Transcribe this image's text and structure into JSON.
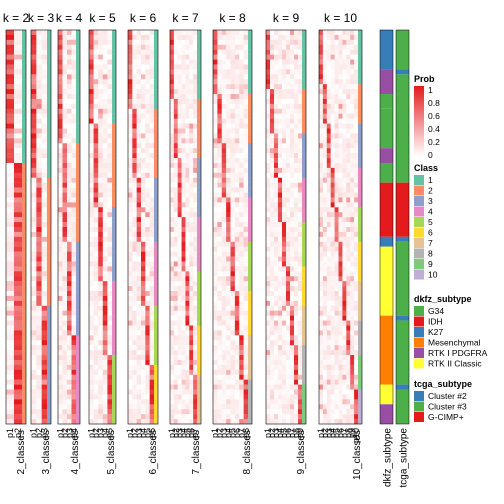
{
  "chart_data": {
    "type": "heatmap",
    "description_of_panels": "consensus membership probability heatmaps for k = 2..10 with class assignment bars and two annotation tracks",
    "panels": [
      {
        "k_label": "k = 2",
        "n_cols": 2,
        "col_labels": [
          "p1",
          "p2"
        ],
        "bottom_label": "2_classes"
      },
      {
        "k_label": "k = 3",
        "n_cols": 3,
        "col_labels": [
          "p1",
          "p2",
          "p3"
        ],
        "bottom_label": "3_classes"
      },
      {
        "k_label": "k = 4",
        "n_cols": 4,
        "col_labels": [
          "p1",
          "p2",
          "p3",
          "p4"
        ],
        "bottom_label": "4_classes"
      },
      {
        "k_label": "k = 5",
        "n_cols": 5,
        "col_labels": [
          "p1",
          "p2",
          "p3",
          "p4",
          "p5"
        ],
        "bottom_label": "5_classes"
      },
      {
        "k_label": "k = 6",
        "n_cols": 6,
        "col_labels": [
          "p1",
          "p2",
          "p3",
          "p4",
          "p5",
          "p6"
        ],
        "bottom_label": "6_classes"
      },
      {
        "k_label": "k = 7",
        "n_cols": 7,
        "col_labels": [
          "p1",
          "p2",
          "p3",
          "p4",
          "p5",
          "p6",
          "p7"
        ],
        "bottom_label": "7_classes"
      },
      {
        "k_label": "k = 8",
        "n_cols": 8,
        "col_labels": [
          "p1",
          "p2",
          "p3",
          "p4",
          "p5",
          "p6",
          "p7",
          "p8"
        ],
        "bottom_label": "8_classes"
      },
      {
        "k_label": "k = 9",
        "n_cols": 9,
        "col_labels": [
          "p1",
          "p2",
          "p3",
          "p4",
          "p5",
          "p6",
          "p7",
          "p8",
          "p9"
        ],
        "bottom_label": "9_classes"
      },
      {
        "k_label": "k = 10",
        "n_cols": 10,
        "col_labels": [
          "p1",
          "p2",
          "p3",
          "p4",
          "p5",
          "p6",
          "p7",
          "p8",
          "p9",
          "p10"
        ],
        "bottom_label": "10_classes"
      }
    ],
    "annotation_tracks": [
      {
        "label": "dkfz_subtype"
      },
      {
        "label": "tcga_subtype"
      }
    ],
    "legends": {
      "prob": {
        "title": "Prob",
        "ticks": [
          "1",
          "0.8",
          "0.6",
          "0.4",
          "0.2",
          "0"
        ],
        "tick_values": [
          1,
          0.8,
          0.6,
          0.4,
          0.2,
          0
        ],
        "color_high": "#e41a1c",
        "color_low": "#ffffff"
      },
      "class": {
        "title": "Class",
        "entries": [
          {
            "label": "1",
            "color": "#66c2a5"
          },
          {
            "label": "2",
            "color": "#fc8d62"
          },
          {
            "label": "3",
            "color": "#8da0cb"
          },
          {
            "label": "4",
            "color": "#e78ac3"
          },
          {
            "label": "5",
            "color": "#a6d854"
          },
          {
            "label": "6",
            "color": "#ffd92f"
          },
          {
            "label": "7",
            "color": "#e5c494"
          },
          {
            "label": "8",
            "color": "#b3b3b3"
          },
          {
            "label": "9",
            "color": "#7fc97f"
          },
          {
            "label": "10",
            "color": "#beaed4"
          }
        ]
      },
      "dkfz_subtype": {
        "title": "dkfz_subtype",
        "entries": [
          {
            "label": "G34",
            "color": "#4daf4a"
          },
          {
            "label": "IDH",
            "color": "#e41a1c"
          },
          {
            "label": "K27",
            "color": "#377eb8"
          },
          {
            "label": "Mesenchymal",
            "color": "#ff7f00"
          },
          {
            "label": "RTK I PDGFRA",
            "color": "#984ea3"
          },
          {
            "label": "RTK II Classic",
            "color": "#ffff33"
          }
        ]
      },
      "tcga_subtype": {
        "title": "tcga_subtype",
        "entries": [
          {
            "label": "Cluster #2",
            "color": "#377eb8"
          },
          {
            "label": "Cluster #3",
            "color": "#4daf4a"
          },
          {
            "label": "G-CIMP+",
            "color": "#e41a1c"
          }
        ]
      }
    }
  }
}
